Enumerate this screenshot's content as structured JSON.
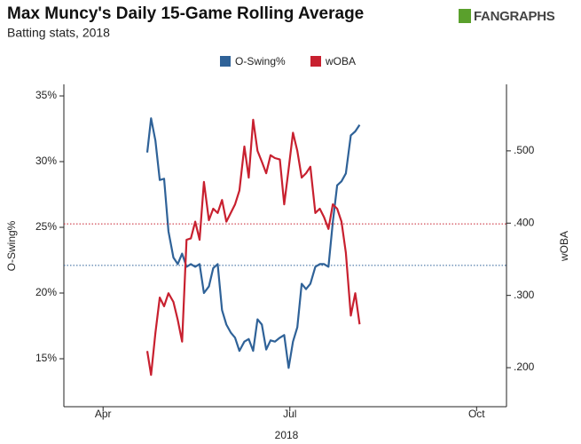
{
  "header": {
    "logo": "FANGRAPHS"
  },
  "chart_data": {
    "type": "line",
    "title": "Max Muncy's Daily 15-Game Rolling Average",
    "subtitle": "Batting stats, 2018",
    "x_label": "2018",
    "y_label": "O-Swing%",
    "y2_label": "wOBA",
    "legend": "top",
    "x": [
      4.71,
      4.77,
      4.84,
      4.91,
      4.98,
      5.05,
      5.13,
      5.2,
      5.27,
      5.34,
      5.41,
      5.48,
      5.55,
      5.62,
      5.7,
      5.77,
      5.84,
      5.91,
      5.98,
      6.05,
      6.12,
      6.19,
      6.27,
      6.34,
      6.41,
      6.48,
      6.55,
      6.62,
      6.69,
      6.76,
      6.84,
      6.91,
      6.98,
      7.05,
      7.12,
      7.19,
      7.26,
      7.33,
      7.41,
      7.48,
      7.55,
      7.62,
      7.69,
      7.76,
      7.83,
      7.9,
      7.98,
      8.05,
      8.12
    ],
    "xlim": [
      3.37,
      10.48
    ],
    "xticks": [
      {
        "value": 4,
        "label": "Apr"
      },
      {
        "value": 7,
        "label": "Jul"
      },
      {
        "value": 10,
        "label": "Oct"
      }
    ],
    "ylim": [
      11.35,
      35.88
    ],
    "yticks": [
      {
        "value": 15,
        "label": "15%"
      },
      {
        "value": 20,
        "label": "20%"
      },
      {
        "value": 25,
        "label": "25%"
      },
      {
        "value": 30,
        "label": "30%"
      },
      {
        "value": 35,
        "label": "35%"
      }
    ],
    "y2lim": [
      0.146,
      0.592
    ],
    "y2ticks": [
      {
        "value": 0.2,
        "label": ".200"
      },
      {
        "value": 0.3,
        "label": ".300"
      },
      {
        "value": 0.4,
        "label": ".400"
      },
      {
        "value": 0.5,
        "label": ".500"
      }
    ],
    "series": [
      {
        "name": "O-Swing%",
        "color": "#2f6298",
        "average": 22.1,
        "values": [
          30.7,
          33.3,
          31.6,
          28.6,
          28.7,
          24.7,
          22.7,
          22.2,
          23.0,
          22.0,
          22.2,
          22.0,
          22.2,
          20.0,
          20.5,
          21.9,
          22.2,
          18.7,
          17.6,
          17.0,
          16.6,
          15.6,
          16.3,
          16.5,
          15.6,
          18.0,
          17.6,
          15.7,
          16.4,
          16.3,
          16.6,
          16.8,
          14.3,
          16.3,
          17.4,
          20.7,
          20.3,
          20.7,
          22.0,
          22.2,
          22.2,
          22.0,
          25.4,
          28.2,
          28.5,
          29.1,
          32.0,
          32.3,
          32.8
        ]
      },
      {
        "name": "wOBA",
        "color": "#c8202f",
        "axis": "y2",
        "average": 0.399,
        "values": [
          0.223,
          0.19,
          0.248,
          0.297,
          0.285,
          0.303,
          0.291,
          0.266,
          0.236,
          0.377,
          0.379,
          0.402,
          0.377,
          0.457,
          0.404,
          0.42,
          0.414,
          0.432,
          0.402,
          0.414,
          0.426,
          0.445,
          0.506,
          0.463,
          0.543,
          0.5,
          0.485,
          0.469,
          0.494,
          0.49,
          0.488,
          0.426,
          0.475,
          0.525,
          0.5,
          0.463,
          0.469,
          0.478,
          0.414,
          0.42,
          0.408,
          0.392,
          0.426,
          0.42,
          0.402,
          0.359,
          0.272,
          0.303,
          0.26
        ]
      }
    ]
  }
}
